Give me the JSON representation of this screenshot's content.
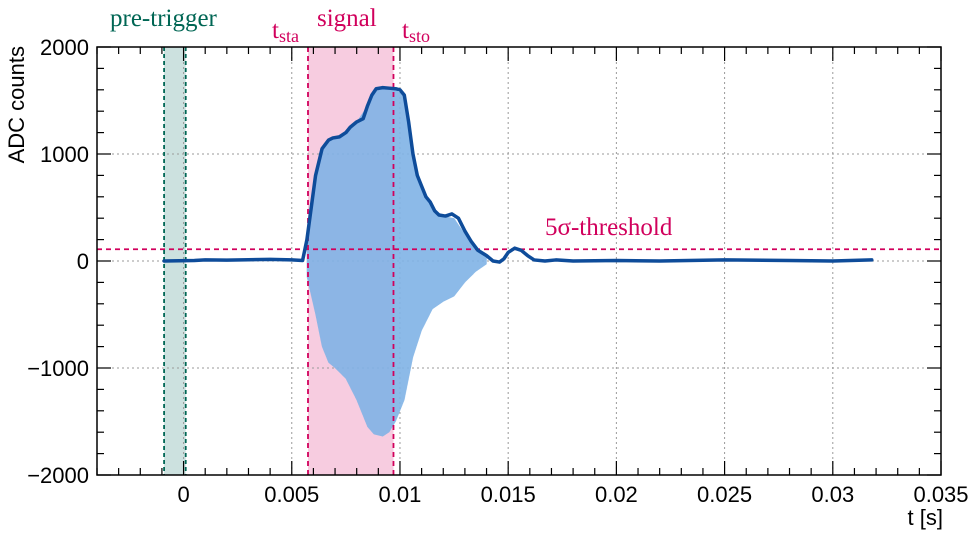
{
  "chart_data": {
    "type": "line",
    "xlabel": "t [s]",
    "ylabel": "ADC counts",
    "xlim": [
      -0.004,
      0.035
    ],
    "ylim": [
      -2000,
      2000
    ],
    "x_ticks": [
      0,
      0.005,
      0.01,
      0.015,
      0.02,
      0.025,
      0.03,
      0.035
    ],
    "x_tick_labels": [
      "0",
      "0.005",
      "0.01",
      "0.015",
      "0.02",
      "0.025",
      "0.03",
      "0.035"
    ],
    "y_ticks": [
      -2000,
      -1000,
      0,
      1000,
      2000
    ],
    "y_tick_labels": [
      "−2000",
      "−1000",
      "0",
      "1000",
      "2000"
    ],
    "grid": true,
    "pretrigger_region": [
      -0.0009,
      0.0001
    ],
    "signal_region": [
      0.00575,
      0.0097
    ],
    "threshold": 110,
    "annotations": {
      "pretrigger": "pre-trigger",
      "signal": "signal",
      "tsta_base": "t",
      "tsta_sub": "sta",
      "tsto_base": "t",
      "tsto_sub": "sto",
      "threshold": "5σ-threshold"
    },
    "envelope": {
      "x": [
        -0.0009,
        0.0005,
        0.001,
        0.002,
        0.003,
        0.004,
        0.005,
        0.0055,
        0.0057,
        0.0059,
        0.0061,
        0.0064,
        0.0067,
        0.0069,
        0.0072,
        0.0075,
        0.0077,
        0.008,
        0.0083,
        0.0085,
        0.0087,
        0.0089,
        0.0092,
        0.0095,
        0.0098,
        0.01,
        0.0102,
        0.0104,
        0.0106,
        0.0108,
        0.011,
        0.0112,
        0.0114,
        0.0116,
        0.0118,
        0.0121,
        0.0124,
        0.0127,
        0.013,
        0.0133,
        0.0136,
        0.014,
        0.0143,
        0.0146,
        0.0148,
        0.015,
        0.0153,
        0.0156,
        0.0159,
        0.0162,
        0.0167,
        0.0172,
        0.018,
        0.02,
        0.022,
        0.025,
        0.028,
        0.03,
        0.0318
      ],
      "y": [
        0,
        5,
        10,
        8,
        12,
        15,
        10,
        5,
        200,
        500,
        800,
        1050,
        1130,
        1150,
        1160,
        1200,
        1250,
        1300,
        1330,
        1450,
        1550,
        1610,
        1620,
        1615,
        1610,
        1600,
        1550,
        1300,
        1000,
        800,
        700,
        600,
        550,
        470,
        430,
        420,
        440,
        400,
        280,
        180,
        100,
        50,
        0,
        -10,
        20,
        80,
        120,
        100,
        50,
        10,
        0,
        10,
        0,
        5,
        0,
        10,
        5,
        0,
        10
      ]
    },
    "oscillation_envelope": {
      "x": [
        0.0057,
        0.0061,
        0.0064,
        0.0067,
        0.007,
        0.0075,
        0.008,
        0.0085,
        0.0088,
        0.0092,
        0.0095,
        0.0098,
        0.0102,
        0.0106,
        0.011,
        0.0115,
        0.012,
        0.0125,
        0.013,
        0.0135,
        0.014
      ],
      "upper": [
        150,
        780,
        1050,
        1120,
        1150,
        1200,
        1300,
        1450,
        1580,
        1620,
        1610,
        1600,
        1550,
        1000,
        700,
        500,
        420,
        400,
        250,
        130,
        50
      ],
      "lower": [
        -150,
        -500,
        -800,
        -950,
        -1000,
        -1100,
        -1300,
        -1550,
        -1620,
        -1640,
        -1600,
        -1500,
        -1300,
        -900,
        -650,
        -450,
        -380,
        -330,
        -200,
        -100,
        -30
      ]
    },
    "colors": {
      "envelope_line": "#0e4c9a",
      "oscillation": "#7fb2e5",
      "signal_region": "#f0a3c7",
      "pretrigger_region": "#8fbcb8",
      "pretrigger_line": "#006654",
      "magenta": "#d1005c",
      "grid": "#9a9a9a"
    }
  }
}
